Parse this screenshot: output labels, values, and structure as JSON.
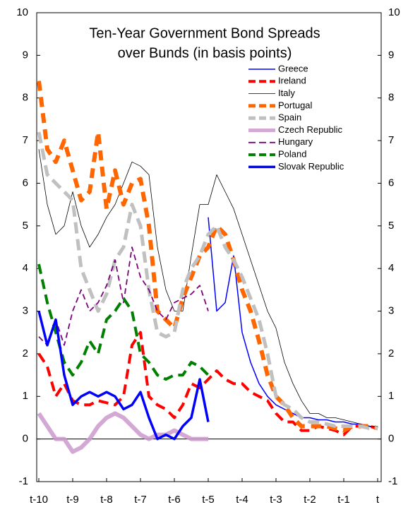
{
  "chart_data": {
    "type": "line",
    "title": [
      "Ten-Year Government Bond Spreads",
      "over Bunds (in basis points)"
    ],
    "x": [
      -10,
      -9.75,
      -9.5,
      -9.25,
      -9,
      -8.75,
      -8.5,
      -8.25,
      -8,
      -7.75,
      -7.5,
      -7.25,
      -7,
      -6.75,
      -6.5,
      -6.25,
      -6,
      -5.75,
      -5.5,
      -5.25,
      -5,
      -4.75,
      -4.5,
      -4.25,
      -4,
      -3.75,
      -3.5,
      -3.25,
      -3,
      -2.75,
      -2.5,
      -2.25,
      -2,
      -1.75,
      -1.5,
      -1.25,
      -1,
      -0.75,
      -0.5,
      -0.25,
      0
    ],
    "xlim": [
      -10,
      0
    ],
    "xticks": [
      {
        "value": -10,
        "label": "t-10"
      },
      {
        "value": -9,
        "label": "t-9"
      },
      {
        "value": -8,
        "label": "t-8"
      },
      {
        "value": -7,
        "label": "t-7"
      },
      {
        "value": -6,
        "label": "t-6"
      },
      {
        "value": -5,
        "label": "t-5"
      },
      {
        "value": -4,
        "label": "t-4"
      },
      {
        "value": -3,
        "label": "t-3"
      },
      {
        "value": -2,
        "label": "t-2"
      },
      {
        "value": -1,
        "label": "t-1"
      },
      {
        "value": 0,
        "label": "t"
      }
    ],
    "ylim": [
      -1,
      10
    ],
    "yticks": [
      -1,
      0,
      1,
      2,
      3,
      4,
      5,
      6,
      7,
      8,
      9,
      10
    ],
    "y2lim": [
      -1,
      10
    ],
    "y2ticks": [
      -1,
      0,
      1,
      2,
      3,
      4,
      5,
      6,
      7,
      8,
      9,
      10
    ],
    "grid": false,
    "legend": "upper right",
    "series": [
      {
        "name": "Greece",
        "color": "#0000ff",
        "values": [
          null,
          null,
          null,
          null,
          null,
          null,
          null,
          null,
          null,
          null,
          null,
          null,
          null,
          null,
          null,
          null,
          null,
          null,
          null,
          null,
          5.2,
          3.0,
          3.2,
          4.3,
          2.5,
          1.8,
          1.3,
          1.0,
          0.8,
          0.7,
          0.6,
          0.5,
          0.5,
          0.45,
          0.45,
          0.4,
          0.4,
          0.35,
          0.35,
          0.3,
          0.25
        ]
      },
      {
        "name": "Ireland",
        "color": "#ff0000",
        "values": [
          2.0,
          1.7,
          1.0,
          1.3,
          0.9,
          0.8,
          0.8,
          0.9,
          0.85,
          0.8,
          1.0,
          2.2,
          2.5,
          1.0,
          0.8,
          0.7,
          0.5,
          0.8,
          1.3,
          1.2,
          1.4,
          1.6,
          1.4,
          1.3,
          1.3,
          1.1,
          1.0,
          0.9,
          0.6,
          0.4,
          0.4,
          0.2,
          0.2,
          0.3,
          0.25,
          0.2,
          0.1,
          0.3,
          0.3,
          0.3,
          0.25
        ]
      },
      {
        "name": "Italy",
        "color": "#000000",
        "values": [
          6.8,
          5.5,
          4.8,
          5.0,
          5.8,
          5.0,
          4.5,
          4.8,
          5.2,
          5.5,
          6.0,
          6.5,
          6.4,
          6.2,
          4.5,
          3.5,
          3.0,
          3.0,
          4.3,
          5.5,
          5.5,
          6.2,
          5.8,
          5.4,
          4.8,
          4.2,
          3.6,
          3.0,
          2.6,
          1.8,
          1.3,
          0.9,
          0.6,
          0.6,
          0.5,
          0.5,
          0.45,
          0.4,
          0.35,
          0.3,
          0.3
        ]
      },
      {
        "name": "Portugal",
        "color": "#ff6600",
        "values": [
          8.4,
          6.8,
          6.5,
          7.0,
          6.3,
          5.6,
          5.8,
          7.2,
          5.4,
          6.3,
          5.5,
          6.0,
          6.1,
          5.0,
          3.0,
          2.8,
          2.6,
          3.3,
          3.8,
          4.3,
          4.5,
          5.0,
          4.8,
          4.2,
          3.5,
          3.0,
          2.3,
          1.5,
          1.0,
          0.8,
          0.5,
          0.3,
          0.3,
          0.3,
          0.3,
          0.25,
          0.2,
          0.3,
          0.3,
          0.3,
          0.25
        ]
      },
      {
        "name": "Spain",
        "color": "#c0c0c0",
        "values": [
          7.2,
          6.2,
          6.0,
          5.8,
          5.6,
          4.0,
          3.5,
          3.0,
          3.4,
          4.2,
          4.5,
          5.5,
          5.0,
          3.5,
          2.5,
          2.4,
          2.5,
          3.5,
          4.0,
          4.3,
          4.8,
          5.0,
          4.5,
          4.2,
          3.8,
          3.3,
          2.8,
          2.0,
          1.0,
          0.8,
          0.7,
          0.5,
          0.4,
          0.4,
          0.35,
          0.3,
          0.3,
          0.3,
          0.3,
          0.25,
          0.25
        ]
      },
      {
        "name": "Czech Republic",
        "color": "#cc99cc",
        "values": [
          0.6,
          0.3,
          0.0,
          0.0,
          -0.3,
          -0.2,
          0.0,
          0.3,
          0.5,
          0.6,
          0.5,
          0.3,
          0.1,
          0.0,
          0.1,
          0.1,
          0.2,
          0.1,
          0.0,
          0.0,
          0.0,
          null,
          null,
          null,
          null,
          null,
          null,
          null,
          null,
          null,
          null,
          null,
          null,
          null,
          null,
          null,
          null,
          null,
          null,
          null,
          null
        ]
      },
      {
        "name": "Hungary",
        "color": "#800080",
        "values": [
          2.4,
          2.2,
          2.8,
          2.2,
          3.0,
          3.5,
          3.0,
          3.2,
          3.6,
          4.2,
          3.2,
          4.5,
          3.8,
          3.5,
          3.0,
          2.8,
          3.2,
          3.3,
          3.4,
          3.6,
          3.0,
          null,
          null,
          null,
          null,
          null,
          null,
          null,
          null,
          null,
          null,
          null,
          null,
          null,
          null,
          null,
          null,
          null,
          null,
          null,
          null
        ]
      },
      {
        "name": "Poland",
        "color": "#008000",
        "values": [
          4.1,
          3.2,
          2.5,
          1.8,
          1.5,
          1.8,
          2.3,
          2.0,
          2.8,
          3.0,
          3.3,
          3.0,
          2.0,
          1.8,
          1.5,
          1.4,
          1.5,
          1.5,
          1.8,
          1.7,
          1.5,
          null,
          null,
          null,
          null,
          null,
          null,
          null,
          null,
          null,
          null,
          null,
          null,
          null,
          null,
          null,
          null,
          null,
          null,
          null,
          null
        ]
      },
      {
        "name": "Slovak Republic",
        "color": "#0000ff",
        "values": [
          3.0,
          2.2,
          2.8,
          1.5,
          0.8,
          1.0,
          1.1,
          1.0,
          1.1,
          1.0,
          0.7,
          0.8,
          1.1,
          0.5,
          0.0,
          0.1,
          0.0,
          0.3,
          0.5,
          1.4,
          0.4,
          null,
          null,
          null,
          null,
          null,
          null,
          null,
          null,
          null,
          null,
          null,
          null,
          null,
          null,
          null,
          null,
          null,
          null,
          null,
          null
        ]
      }
    ]
  }
}
